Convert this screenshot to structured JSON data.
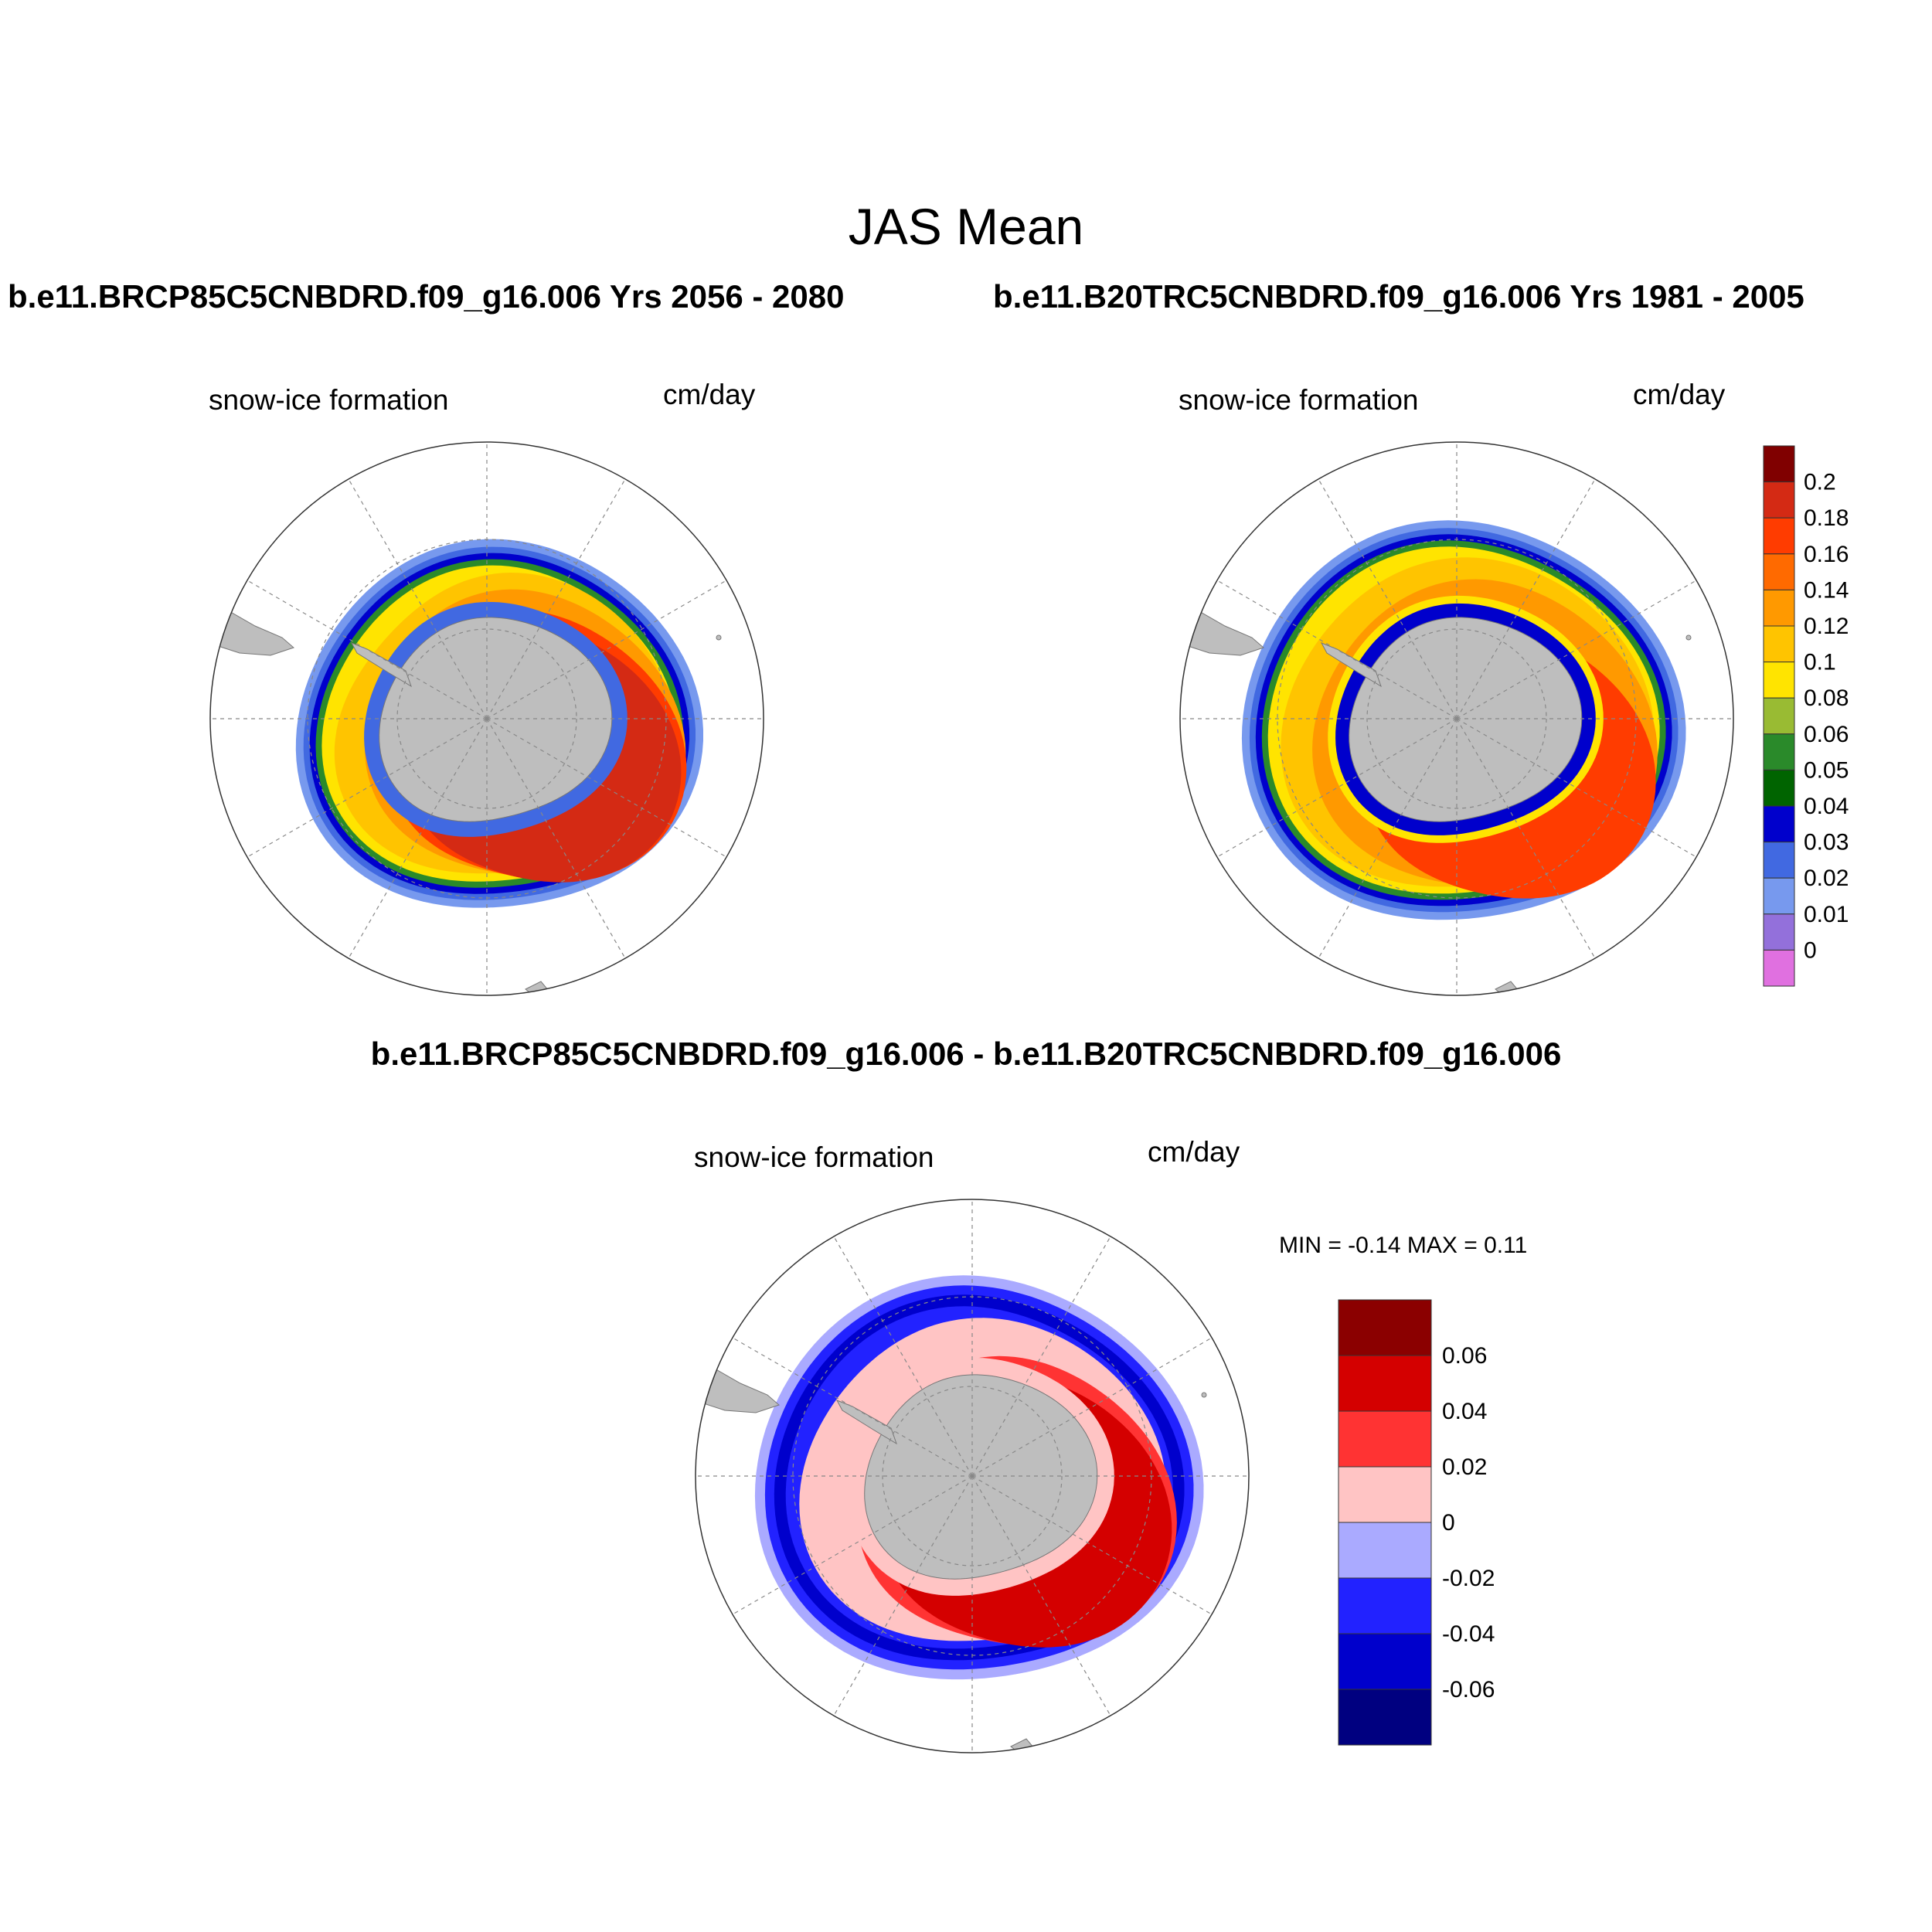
{
  "figure": {
    "title": "JAS Mean",
    "run_left_title": "b.e11.BRCP85C5CNBDRD.f09_g16.006  Yrs 2056 - 2080",
    "run_right_title": "b.e11.B20TRC5CNBDRD.f09_g16.006  Yrs 1981 - 2005",
    "diff_title": "b.e11.BRCP85C5CNBDRD.f09_g16.006 - b.e11.B20TRC5CNBDRD.f09_g16.006"
  },
  "panels": {
    "left": {
      "variable": "snow-ice formation",
      "units": "cm/day"
    },
    "right": {
      "variable": "snow-ice formation",
      "units": "cm/day"
    },
    "diff": {
      "variable": "snow-ice formation",
      "units": "cm/day",
      "minmax": "MIN =  -0.14 MAX =   0.11"
    }
  },
  "colorbar_main": {
    "labels": [
      "0.2",
      "0.18",
      "0.16",
      "0.14",
      "0.12",
      "0.1",
      "0.08",
      "0.06",
      "0.05",
      "0.04",
      "0.03",
      "0.02",
      "0.01",
      "0"
    ],
    "colors": [
      "#800000",
      "#d42a14",
      "#ff3c00",
      "#ff6a00",
      "#ff9900",
      "#ffc400",
      "#ffe400",
      "#99bb33",
      "#2a8a2a",
      "#006400",
      "#0000cc",
      "#4169e1",
      "#7799ee",
      "#9370db",
      "#e070e0"
    ]
  },
  "colorbar_diff": {
    "labels": [
      "0.06",
      "0.04",
      "0.02",
      "0",
      "-0.02",
      "-0.04",
      "-0.06"
    ],
    "colors": [
      "#8b0000",
      "#d40000",
      "#ff3333",
      "#ffc4c4",
      "#aaaaff",
      "#2222ff",
      "#0000cc",
      "#000080"
    ]
  },
  "map_colors": {
    "land": "#bebebe",
    "ocean": "#ffffff"
  }
}
